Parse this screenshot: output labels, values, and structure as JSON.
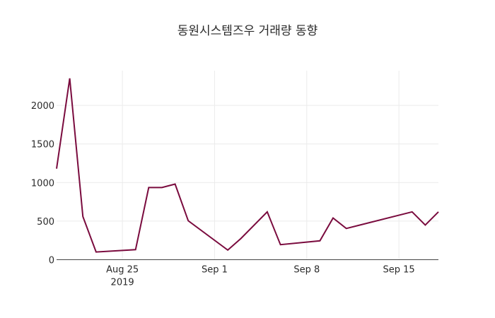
{
  "chart_data": {
    "type": "line",
    "title": "동원시스템즈우 거래량 동향",
    "xlabel": "",
    "ylabel": "",
    "x": [
      "2019-08-20",
      "2019-08-21",
      "2019-08-22",
      "2019-08-23",
      "2019-08-26",
      "2019-08-27",
      "2019-08-28",
      "2019-08-29",
      "2019-08-30",
      "2019-09-02",
      "2019-09-03",
      "2019-09-05",
      "2019-09-06",
      "2019-09-09",
      "2019-09-10",
      "2019-09-11",
      "2019-09-16",
      "2019-09-17",
      "2019-09-18"
    ],
    "series": [
      {
        "name": "거래량",
        "color": "#7a0b3e",
        "values": [
          1180,
          2350,
          560,
          100,
          130,
          935,
          935,
          980,
          505,
          125,
          275,
          620,
          195,
          245,
          540,
          405,
          620,
          450,
          620
        ]
      }
    ],
    "xlim": [
      "2019-08-20",
      "2019-09-18"
    ],
    "ylim": [
      0,
      2450
    ],
    "x_ticks": [
      {
        "date": "2019-08-25",
        "label": "Aug 25",
        "sublabel": "2019"
      },
      {
        "date": "2019-09-01",
        "label": "Sep 1",
        "sublabel": ""
      },
      {
        "date": "2019-09-08",
        "label": "Sep 8",
        "sublabel": ""
      },
      {
        "date": "2019-09-15",
        "label": "Sep 15",
        "sublabel": ""
      }
    ],
    "y_ticks": [
      0,
      500,
      1000,
      1500,
      2000
    ],
    "grid": true,
    "legend": "none"
  }
}
